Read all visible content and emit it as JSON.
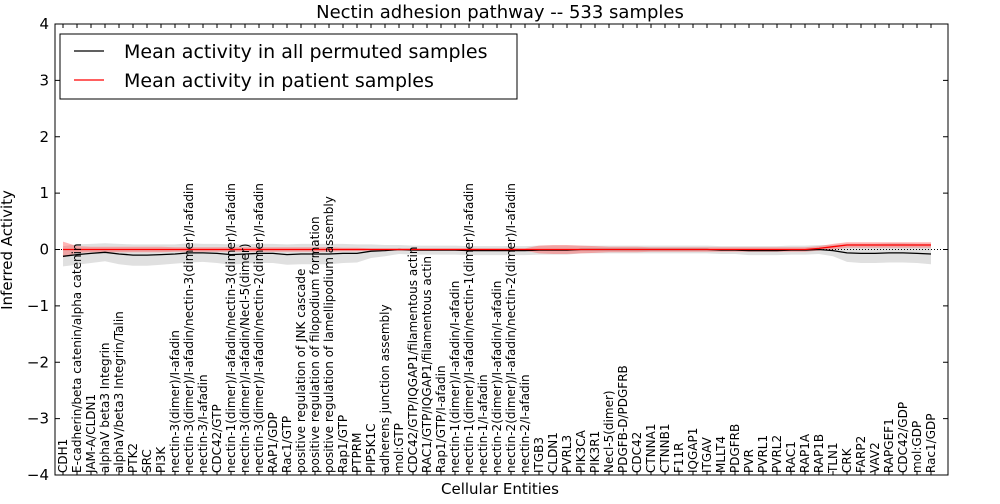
{
  "chart_data": {
    "type": "line",
    "title": "Nectin adhesion pathway -- 533 samples",
    "xlabel": "Cellular Entities",
    "ylabel": "Inferred Activity",
    "ylim": [
      -4,
      4
    ],
    "yticks": [
      -4,
      -3,
      -2,
      -1,
      0,
      1,
      2,
      3,
      4
    ],
    "ytick_labels": [
      "−4",
      "−3",
      "−2",
      "−1",
      "0",
      "1",
      "2",
      "3",
      "4"
    ],
    "grid": false,
    "legend_position": "top-left",
    "categories": [
      "CDH1",
      "E-cadherin/beta catenin/alpha catenin",
      "JAM-A/CLDN1",
      "alphaV beta3 Integrin",
      "alphaV/beta3 Integrin/Talin",
      "PTK2",
      "SRC",
      "PI3K",
      "nectin-3(dimer)/I-afadin",
      "nectin-3(dimer)/I-afadin/nectin-3(dimer)/I-afadin",
      "nectin-3/I-afadin",
      "CDC42/GTP",
      "nectin-1(dimer)/I-afadin/nectin-3(dimer)/I-afadin",
      "nectin-3(dimer)/I-afadin/Necl-5(dimer)",
      "nectin-3(dimer)/I-afadin/nectin-2(dimer)/I-afadin",
      "RAP1/GDP",
      "Rac1/GTP",
      "positive regulation of JNK cascade",
      "positive regulation of filopodium formation",
      "positive regulation of lamellipodium assembly",
      "Rap1/GTP",
      "PTPRM",
      "PIP5K1C",
      "adherens junction assembly",
      "mol:GTP",
      "CDC42/GTP/IQGAP1/filamentous actin",
      "RAC1/GTP/IQGAP1/filamentous actin",
      "Rap1/GTP/I-afadin",
      "nectin-1(dimer)/I-afadin/I-afadin",
      "nectin-1(dimer)/I-afadin/nectin-1(dimer)/I-afadin",
      "nectin-1/I-afadin",
      "nectin-2(dimer)/I-afadin/I-afadin",
      "nectin-2(dimer)/I-afadin/nectin-2(dimer)/I-afadin",
      "nectin-2/I-afadin",
      "ITGB3",
      "CLDN1",
      "PVRL3",
      "PIK3CA",
      "PIK3R1",
      "Necl-5(dimer)",
      "PDGFB-D/PDGFRB",
      "CDC42",
      "CTNNA1",
      "CTNNB1",
      "F11R",
      "IQGAP1",
      "ITGAV",
      "MLLT4",
      "PDGFRB",
      "PVR",
      "PVRL1",
      "PVRL2",
      "RAC1",
      "RAP1A",
      "RAP1B",
      "TLN1",
      "CRK",
      "FARP2",
      "VAV2",
      "RAPGEF1",
      "CDC42/GDP",
      "mol:GDP",
      "Rac1/GDP"
    ],
    "series": [
      {
        "name": "Mean activity in all permuted samples",
        "color": "#000000",
        "values": [
          -0.12,
          -0.09,
          -0.07,
          -0.05,
          -0.08,
          -0.1,
          -0.1,
          -0.09,
          -0.08,
          -0.06,
          -0.06,
          -0.07,
          -0.09,
          -0.08,
          -0.07,
          -0.07,
          -0.09,
          -0.08,
          -0.08,
          -0.08,
          -0.07,
          -0.07,
          -0.03,
          -0.02,
          0.0,
          -0.01,
          -0.01,
          -0.01,
          -0.01,
          -0.02,
          -0.02,
          -0.02,
          -0.02,
          -0.02,
          -0.01,
          -0.01,
          -0.01,
          0.0,
          0.0,
          0.0,
          0.0,
          0.0,
          0.0,
          0.0,
          0.0,
          0.0,
          0.0,
          -0.01,
          -0.01,
          -0.02,
          -0.02,
          -0.02,
          -0.01,
          -0.01,
          0.0,
          -0.02,
          -0.06,
          -0.07,
          -0.07,
          -0.06,
          -0.06,
          -0.07,
          -0.08
        ],
        "band": [
          0.18,
          0.18,
          0.17,
          0.16,
          0.18,
          0.19,
          0.19,
          0.18,
          0.17,
          0.17,
          0.16,
          0.17,
          0.18,
          0.17,
          0.17,
          0.17,
          0.18,
          0.18,
          0.18,
          0.18,
          0.17,
          0.16,
          0.12,
          0.1,
          0.08,
          0.08,
          0.08,
          0.08,
          0.08,
          0.08,
          0.08,
          0.08,
          0.08,
          0.08,
          0.08,
          0.08,
          0.08,
          0.07,
          0.07,
          0.07,
          0.07,
          0.07,
          0.07,
          0.07,
          0.07,
          0.07,
          0.07,
          0.07,
          0.07,
          0.08,
          0.08,
          0.08,
          0.08,
          0.08,
          0.08,
          0.1,
          0.16,
          0.17,
          0.17,
          0.17,
          0.17,
          0.17,
          0.18
        ]
      },
      {
        "name": "Mean activity in patient samples",
        "color": "#ff0000",
        "values": [
          0.0,
          0.0,
          0.0,
          0.0,
          0.0,
          0.0,
          0.0,
          0.0,
          0.0,
          0.0,
          0.0,
          0.0,
          0.0,
          0.0,
          0.0,
          0.0,
          0.0,
          0.0,
          0.0,
          0.0,
          0.0,
          0.0,
          0.0,
          0.0,
          0.0,
          0.0,
          0.0,
          0.0,
          0.0,
          0.0,
          0.0,
          0.0,
          0.0,
          0.0,
          0.0,
          0.0,
          0.0,
          0.0,
          0.0,
          0.0,
          0.0,
          0.0,
          0.0,
          0.0,
          0.0,
          0.0,
          0.0,
          0.0,
          0.0,
          0.0,
          0.0,
          0.0,
          0.0,
          0.0,
          0.02,
          0.05,
          0.08,
          0.08,
          0.08,
          0.08,
          0.08,
          0.08,
          0.08
        ],
        "band": [
          0.14,
          0.06,
          0.05,
          0.05,
          0.05,
          0.05,
          0.05,
          0.05,
          0.04,
          0.04,
          0.04,
          0.04,
          0.04,
          0.04,
          0.04,
          0.04,
          0.04,
          0.04,
          0.04,
          0.04,
          0.03,
          0.03,
          0.02,
          0.02,
          0.02,
          0.02,
          0.02,
          0.02,
          0.02,
          0.02,
          0.02,
          0.02,
          0.02,
          0.02,
          0.07,
          0.08,
          0.08,
          0.07,
          0.06,
          0.05,
          0.05,
          0.05,
          0.04,
          0.04,
          0.04,
          0.04,
          0.04,
          0.04,
          0.04,
          0.04,
          0.04,
          0.04,
          0.04,
          0.04,
          0.04,
          0.05,
          0.05,
          0.05,
          0.05,
          0.05,
          0.05,
          0.05,
          0.05
        ]
      }
    ]
  }
}
